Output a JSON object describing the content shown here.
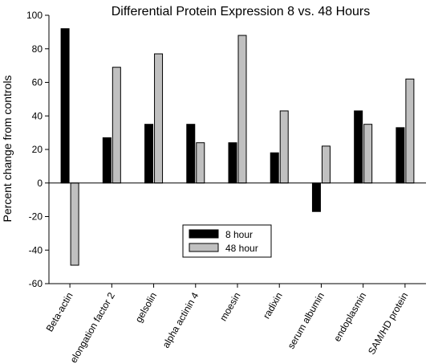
{
  "chart_data": {
    "type": "bar",
    "title": "Differential Protein Expression 8 vs. 48 Hours",
    "xlabel": "",
    "ylabel": "Percent change from controls",
    "ylim": [
      -60,
      100
    ],
    "yticks": [
      -60,
      -40,
      -20,
      0,
      20,
      40,
      60,
      80,
      100
    ],
    "categories": [
      "Beta-actin",
      "elongation factor 2",
      "gelsolin",
      "alpha actinin 4",
      "moesin",
      "radixin",
      "serum albumin",
      "endoplasmin",
      "SAM/HD protein"
    ],
    "series": [
      {
        "name": "8 hour",
        "color": "#000000",
        "values": [
          92,
          27,
          35,
          35,
          24,
          18,
          -17,
          43,
          33
        ]
      },
      {
        "name": "48 hour",
        "color": "#c0c0c0",
        "values": [
          -49,
          69,
          77,
          24,
          88,
          43,
          22,
          35,
          62
        ]
      }
    ],
    "legend_position": "lower-center",
    "grid": false
  }
}
